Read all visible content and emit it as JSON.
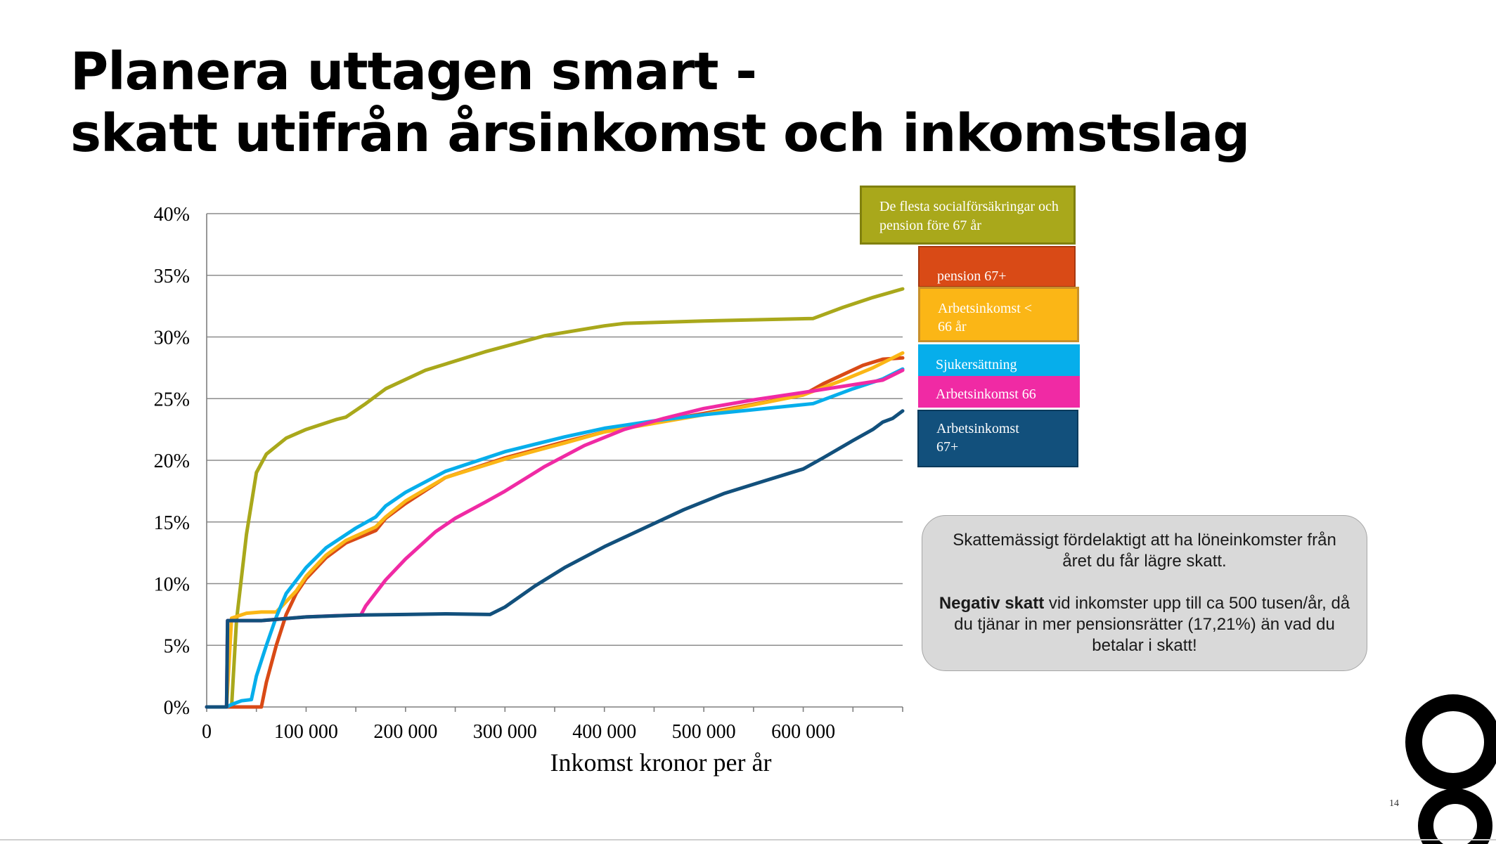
{
  "slide": {
    "title_line1": "Planera uttagen smart -",
    "title_line2": "skatt utifrån årsinkomst och inkomstslag",
    "page_number": "14"
  },
  "callout": {
    "line1": "Skattemässigt fördelaktigt att ha löneinkomster från året du får lägre skatt.",
    "bold": "Negativ skatt",
    "line2_rest": " vid inkomster upp till ca 500 tusen/år, då du tjänar in mer pensionsrätter (17,21%) än vad du betalar i skatt!"
  },
  "legend": {
    "olive": "De flesta socialförsäkringar och pension före 67 år",
    "red": "pension  67+",
    "orange": "Arbetsinkomst < 66 år",
    "blue": "Sjukersättning",
    "pink": "Arbetsinkomst 66",
    "navy": "Arbetsinkomst 67+"
  },
  "colors": {
    "olive": "#a9a81b",
    "red": "#d94a16",
    "orange": "#fbb616",
    "blue": "#06aeeb",
    "pink": "#f02aa4",
    "navy": "#12507c",
    "callout_bg": "#d9d9d9"
  },
  "chart_data": {
    "type": "line",
    "title": "",
    "xlabel": "Inkomst kronor per år",
    "ylabel": "",
    "xlim": [
      0,
      700000
    ],
    "ylim": [
      0,
      40
    ],
    "x_ticks": [
      0,
      100000,
      200000,
      300000,
      400000,
      500000,
      600000
    ],
    "x_tick_labels": [
      "0",
      "100 000",
      "200 000",
      "300 000",
      "400 000",
      "500 000",
      "600 000"
    ],
    "y_ticks": [
      0,
      5,
      10,
      15,
      20,
      25,
      30,
      35,
      40
    ],
    "y_tick_labels": [
      "0%",
      "5%",
      "10%",
      "15%",
      "20%",
      "25%",
      "30%",
      "35%",
      "40%"
    ],
    "grid": true,
    "series": [
      {
        "name": "De flesta socialförsäkringar och pension före 67 år",
        "color": "#a9a81b",
        "points": [
          [
            0,
            0
          ],
          [
            20000,
            0
          ],
          [
            25000,
            0
          ],
          [
            30000,
            7
          ],
          [
            40000,
            14
          ],
          [
            50000,
            19
          ],
          [
            60000,
            20.5
          ],
          [
            80000,
            21.8
          ],
          [
            100000,
            22.5
          ],
          [
            130000,
            23.3
          ],
          [
            140000,
            23.5
          ],
          [
            160000,
            24.6
          ],
          [
            180000,
            25.8
          ],
          [
            220000,
            27.3
          ],
          [
            280000,
            28.8
          ],
          [
            340000,
            30.1
          ],
          [
            400000,
            30.9
          ],
          [
            420000,
            31.1
          ],
          [
            500000,
            31.3
          ],
          [
            610000,
            31.5
          ],
          [
            640000,
            32.4
          ],
          [
            670000,
            33.2
          ],
          [
            700000,
            33.9
          ]
        ]
      },
      {
        "name": "pension  67+",
        "color": "#d94a16",
        "points": [
          [
            0,
            0
          ],
          [
            20000,
            0
          ],
          [
            55000,
            0
          ],
          [
            60000,
            2
          ],
          [
            70000,
            5
          ],
          [
            80000,
            7.5
          ],
          [
            90000,
            9.2
          ],
          [
            100000,
            10.4
          ],
          [
            120000,
            12.1
          ],
          [
            140000,
            13.3
          ],
          [
            170000,
            14.3
          ],
          [
            180000,
            15.3
          ],
          [
            200000,
            16.5
          ],
          [
            240000,
            18.6
          ],
          [
            300000,
            20.2
          ],
          [
            360000,
            21.5
          ],
          [
            400000,
            22.3
          ],
          [
            450000,
            23.1
          ],
          [
            500000,
            23.8
          ],
          [
            600000,
            25.3
          ],
          [
            620000,
            26.2
          ],
          [
            660000,
            27.7
          ],
          [
            680000,
            28.2
          ],
          [
            700000,
            28.3
          ]
        ]
      },
      {
        "name": "Arbetsinkomst < 66 år",
        "color": "#fbb616",
        "points": [
          [
            0,
            0
          ],
          [
            20000,
            0
          ],
          [
            25000,
            7.2
          ],
          [
            40000,
            7.6
          ],
          [
            55000,
            7.7
          ],
          [
            70000,
            7.7
          ],
          [
            90000,
            9.4
          ],
          [
            100000,
            10.6
          ],
          [
            120000,
            12.3
          ],
          [
            140000,
            13.5
          ],
          [
            170000,
            14.6
          ],
          [
            180000,
            15.4
          ],
          [
            200000,
            16.7
          ],
          [
            240000,
            18.6
          ],
          [
            300000,
            20.1
          ],
          [
            360000,
            21.4
          ],
          [
            400000,
            22.3
          ],
          [
            450000,
            23.0
          ],
          [
            500000,
            23.7
          ],
          [
            600000,
            25.3
          ],
          [
            640000,
            26.5
          ],
          [
            670000,
            27.5
          ],
          [
            700000,
            28.7
          ]
        ]
      },
      {
        "name": "Sjukersättning",
        "color": "#06aeeb",
        "points": [
          [
            0,
            0
          ],
          [
            20000,
            0
          ],
          [
            25000,
            0.2
          ],
          [
            35000,
            0.5
          ],
          [
            45000,
            0.6
          ],
          [
            50000,
            2.5
          ],
          [
            60000,
            5
          ],
          [
            70000,
            7.3
          ],
          [
            80000,
            9.2
          ],
          [
            100000,
            11.3
          ],
          [
            120000,
            12.9
          ],
          [
            150000,
            14.5
          ],
          [
            170000,
            15.4
          ],
          [
            180000,
            16.3
          ],
          [
            200000,
            17.4
          ],
          [
            240000,
            19.1
          ],
          [
            300000,
            20.7
          ],
          [
            360000,
            21.9
          ],
          [
            400000,
            22.6
          ],
          [
            450000,
            23.2
          ],
          [
            500000,
            23.7
          ],
          [
            550000,
            24.1
          ],
          [
            610000,
            24.6
          ],
          [
            650000,
            25.8
          ],
          [
            680000,
            26.6
          ],
          [
            700000,
            27.4
          ]
        ]
      },
      {
        "name": "Arbetsinkomst 66",
        "color": "#f02aa4",
        "points": [
          [
            0,
            0
          ],
          [
            20000,
            0
          ],
          [
            21000,
            7.0
          ],
          [
            40000,
            7.0
          ],
          [
            55000,
            7.0
          ],
          [
            70000,
            7.1
          ],
          [
            100000,
            7.3
          ],
          [
            130000,
            7.4
          ],
          [
            155000,
            7.45
          ],
          [
            160000,
            8.2
          ],
          [
            180000,
            10.3
          ],
          [
            200000,
            12
          ],
          [
            230000,
            14.2
          ],
          [
            250000,
            15.3
          ],
          [
            280000,
            16.6
          ],
          [
            300000,
            17.5
          ],
          [
            340000,
            19.5
          ],
          [
            380000,
            21.2
          ],
          [
            420000,
            22.5
          ],
          [
            460000,
            23.4
          ],
          [
            500000,
            24.2
          ],
          [
            550000,
            24.9
          ],
          [
            600000,
            25.5
          ],
          [
            640000,
            26.0
          ],
          [
            680000,
            26.5
          ],
          [
            700000,
            27.3
          ]
        ]
      },
      {
        "name": "Arbetsinkomst 67+",
        "color": "#12507c",
        "points": [
          [
            0,
            0
          ],
          [
            20000,
            0
          ],
          [
            21000,
            7.0
          ],
          [
            40000,
            7.0
          ],
          [
            55000,
            7.0
          ],
          [
            70000,
            7.1
          ],
          [
            100000,
            7.3
          ],
          [
            150000,
            7.45
          ],
          [
            200000,
            7.5
          ],
          [
            240000,
            7.55
          ],
          [
            285000,
            7.5
          ],
          [
            300000,
            8.1
          ],
          [
            330000,
            9.8
          ],
          [
            360000,
            11.3
          ],
          [
            400000,
            13
          ],
          [
            440000,
            14.5
          ],
          [
            480000,
            16
          ],
          [
            520000,
            17.3
          ],
          [
            560000,
            18.3
          ],
          [
            600000,
            19.3
          ],
          [
            620000,
            20.2
          ],
          [
            650000,
            21.6
          ],
          [
            670000,
            22.5
          ],
          [
            680000,
            23.1
          ],
          [
            690000,
            23.4
          ],
          [
            700000,
            24.0
          ]
        ]
      }
    ]
  }
}
